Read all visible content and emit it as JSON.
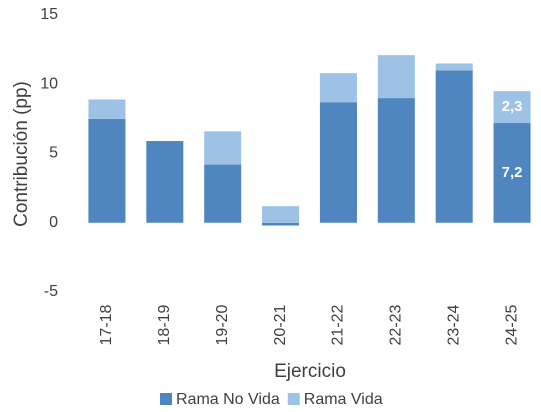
{
  "chart_data": {
    "type": "bar",
    "stacked": true,
    "ylabel": "Contribución (pp)",
    "xlabel": "Ejercicio",
    "categories": [
      "17-18",
      "18-19",
      "19-20",
      "20-21",
      "21-22",
      "22-23",
      "23-24",
      "24-25"
    ],
    "series": [
      {
        "name": "Rama No Vida",
        "color": "#4f86c0",
        "values": [
          7.5,
          5.9,
          4.2,
          -0.2,
          8.7,
          9.0,
          11.0,
          7.2
        ],
        "value_labels": [
          null,
          null,
          null,
          null,
          null,
          null,
          null,
          "7,2"
        ]
      },
      {
        "name": "Rama Vida",
        "color": "#9ec2e6",
        "values": [
          1.4,
          0,
          2.4,
          1.2,
          2.1,
          3.1,
          0.5,
          2.3
        ],
        "value_labels": [
          null,
          null,
          null,
          null,
          null,
          null,
          null,
          "2,3"
        ]
      }
    ],
    "ylim": [
      -5,
      15
    ],
    "yticks": [
      -5,
      0,
      5,
      10,
      15
    ],
    "grid": false,
    "legend": "bottom"
  }
}
